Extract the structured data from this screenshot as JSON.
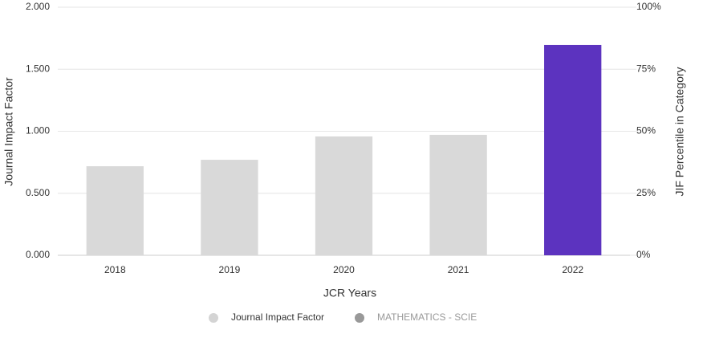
{
  "chart_data": {
    "type": "bar",
    "categories": [
      "2018",
      "2019",
      "2020",
      "2021",
      "2022"
    ],
    "series": [
      {
        "name": "Journal Impact Factor",
        "color": "#d4d4d4",
        "values": [
          0.718,
          0.77,
          0.958,
          0.971,
          1.696
        ],
        "colors": [
          "#d9d9d9",
          "#d9d9d9",
          "#d9d9d9",
          "#d9d9d9",
          "#5c33bf"
        ]
      },
      {
        "name": "MATHEMATICS - SCIE",
        "color": "#999999",
        "axis": "y2",
        "values": [
          null,
          null,
          null,
          null,
          null
        ]
      }
    ],
    "xlabel": "JCR Years",
    "ylabel": "Journal Impact Factor",
    "y2label": "JIF Percentile in Category",
    "ylim": [
      0,
      2
    ],
    "yticks": [
      {
        "value": 0,
        "label": "0.000"
      },
      {
        "value": 0.5,
        "label": "0.500"
      },
      {
        "value": 1,
        "label": "1.000"
      },
      {
        "value": 1.5,
        "label": "1.500"
      },
      {
        "value": 2,
        "label": "2.000"
      }
    ],
    "y2lim": [
      0,
      100
    ],
    "y2ticks": [
      {
        "value": 0,
        "label": "0%"
      },
      {
        "value": 25,
        "label": "25%"
      },
      {
        "value": 50,
        "label": "50%"
      },
      {
        "value": 75,
        "label": "75%"
      },
      {
        "value": 100,
        "label": "100%"
      }
    ],
    "grid": true
  }
}
